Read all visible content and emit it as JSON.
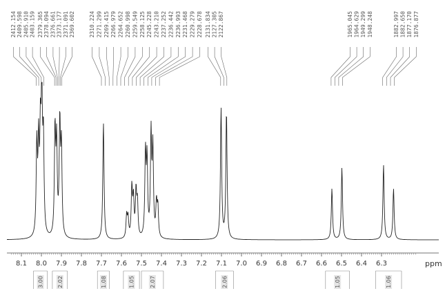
{
  "chart_data": {
    "type": "line",
    "title": "",
    "xlabel": "ppm",
    "ylabel": "",
    "xlim": [
      8.15,
      6.13
    ],
    "x_reversed": true,
    "x_ticks": [
      "8.1",
      "8.0",
      "7.9",
      "7.8",
      "7.7",
      "7.6",
      "7.5",
      "7.4",
      "7.3",
      "7.2",
      "7.1",
      "7.0",
      "6.9",
      "6.8",
      "6.7",
      "6.6",
      "6.5",
      "6.4",
      "6.3"
    ],
    "x_tick_values": [
      8.1,
      8.0,
      7.9,
      7.8,
      7.7,
      7.6,
      7.5,
      7.4,
      7.3,
      7.2,
      7.1,
      7.0,
      6.9,
      6.8,
      6.7,
      6.6,
      6.5,
      6.4,
      6.3
    ],
    "peak_labels": [
      {
        "group": 1,
        "labels": [
          "2412.154",
          "2409.598",
          "2405.910",
          "2403.159"
        ]
      },
      {
        "group": 2,
        "labels": [
          "2379.365",
          "2378.094",
          "2376.661",
          "2373.177",
          "2371.091",
          "2369.602"
        ]
      },
      {
        "group": 3,
        "labels": [
          "2310.224",
          "2271.299",
          "2269.415",
          "2266.979",
          "2264.652",
          "2260.998",
          "2259.549",
          "2258.125",
          "2245.228",
          "2243.210",
          "2237.252",
          "2236.442",
          "2236.993",
          "2231.468",
          "2229.279",
          "2228.678"
        ]
      },
      {
        "group": 4,
        "labels": [
          "2131.834",
          "2127.305",
          "2122.867"
        ]
      },
      {
        "group": 5,
        "labels": [
          "1965.045",
          "1964.629",
          "1949.299",
          "1948.248"
        ]
      },
      {
        "group": 6,
        "labels": [
          "1882.997",
          "1882.650",
          "1877.170",
          "1876.877"
        ]
      }
    ],
    "peaks": [
      {
        "x": 8.023,
        "y": 0.6
      },
      {
        "x": 8.014,
        "y": 0.58
      },
      {
        "x": 8.005,
        "y": 0.62
      },
      {
        "x": 7.998,
        "y": 0.92
      },
      {
        "x": 7.99,
        "y": 0.62
      },
      {
        "x": 7.932,
        "y": 0.7
      },
      {
        "x": 7.924,
        "y": 0.6
      },
      {
        "x": 7.908,
        "y": 0.74
      },
      {
        "x": 7.9,
        "y": 0.58
      },
      {
        "x": 7.69,
        "y": 0.78
      },
      {
        "x": 7.574,
        "y": 0.15
      },
      {
        "x": 7.567,
        "y": 0.13
      },
      {
        "x": 7.548,
        "y": 0.33
      },
      {
        "x": 7.54,
        "y": 0.25
      },
      {
        "x": 7.527,
        "y": 0.3
      },
      {
        "x": 7.52,
        "y": 0.22
      },
      {
        "x": 7.48,
        "y": 0.55
      },
      {
        "x": 7.472,
        "y": 0.5
      },
      {
        "x": 7.452,
        "y": 0.68
      },
      {
        "x": 7.443,
        "y": 0.58
      },
      {
        "x": 7.425,
        "y": 0.22
      },
      {
        "x": 7.418,
        "y": 0.2
      },
      {
        "x": 7.102,
        "y": 0.87
      },
      {
        "x": 7.075,
        "y": 0.85
      },
      {
        "x": 6.548,
        "y": 0.34
      },
      {
        "x": 6.498,
        "y": 0.48
      },
      {
        "x": 6.29,
        "y": 0.5
      },
      {
        "x": 6.24,
        "y": 0.34
      }
    ],
    "integrals": [
      {
        "label": "3.00",
        "from": 8.04,
        "to": 7.97
      },
      {
        "label": "2.02",
        "from": 7.945,
        "to": 7.87
      },
      {
        "label": "1.08",
        "from": 7.72,
        "to": 7.66
      },
      {
        "label": "1.05",
        "from": 7.59,
        "to": 7.51
      },
      {
        "label": "2.07",
        "from": 7.5,
        "to": 7.39
      },
      {
        "label": "2.06",
        "from": 7.13,
        "to": 7.04
      },
      {
        "label": "1.05",
        "from": 6.58,
        "to": 6.46
      },
      {
        "label": "1.06",
        "from": 6.33,
        "to": 6.2
      }
    ]
  }
}
